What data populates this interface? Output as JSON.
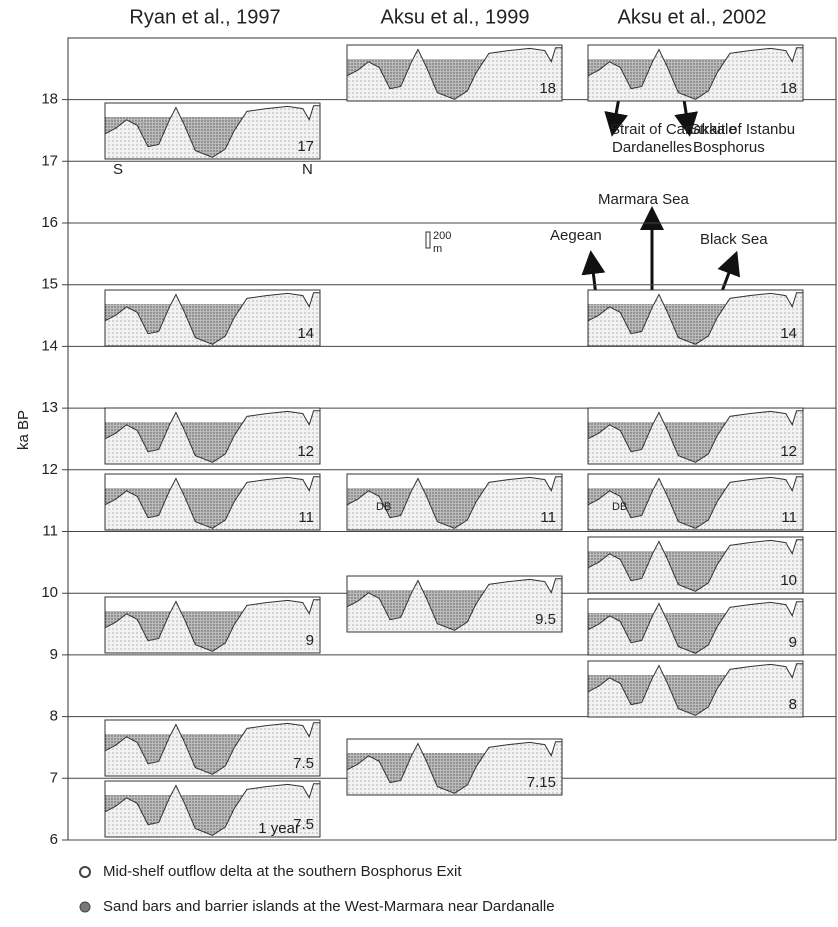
{
  "columns": [
    {
      "header": "Ryan et al., 1997",
      "panels": [
        {
          "label": "17"
        },
        {
          "label": "14"
        },
        {
          "label": "12"
        },
        {
          "label": "11"
        },
        {
          "label": "9"
        },
        {
          "label": "7.5"
        },
        {
          "label": "7.5"
        }
      ]
    },
    {
      "header": "Aksu et al., 1999",
      "panels": [
        {
          "label": "18"
        },
        {
          "label": "11"
        },
        {
          "label": "9.5"
        },
        {
          "label": "7.15"
        }
      ]
    },
    {
      "header": "Aksu et al., 2002",
      "panels": [
        {
          "label": "18"
        },
        {
          "label": "14"
        },
        {
          "label": "12"
        },
        {
          "label": "11"
        },
        {
          "label": "10"
        },
        {
          "label": "9"
        },
        {
          "label": "8"
        }
      ]
    }
  ],
  "axis": {
    "label": "ka BP",
    "ticks": [
      6,
      7,
      8,
      9,
      10,
      11,
      12,
      13,
      14,
      15,
      16,
      17,
      18
    ]
  },
  "annotations": [
    "S",
    "N",
    "1 year",
    "200",
    "m",
    "DB",
    "DB",
    "Strait of Canakkale",
    "Dardanelles",
    "Strait of Istanbu",
    "Bosphorus",
    "Marmara Sea",
    "Aegean",
    "Black Sea"
  ],
  "legend": [
    "Mid-shelf outflow delta at the southern Bosphorus Exit",
    "Sand bars and barrier islands at the West-Marmara near Dardanalle"
  ]
}
